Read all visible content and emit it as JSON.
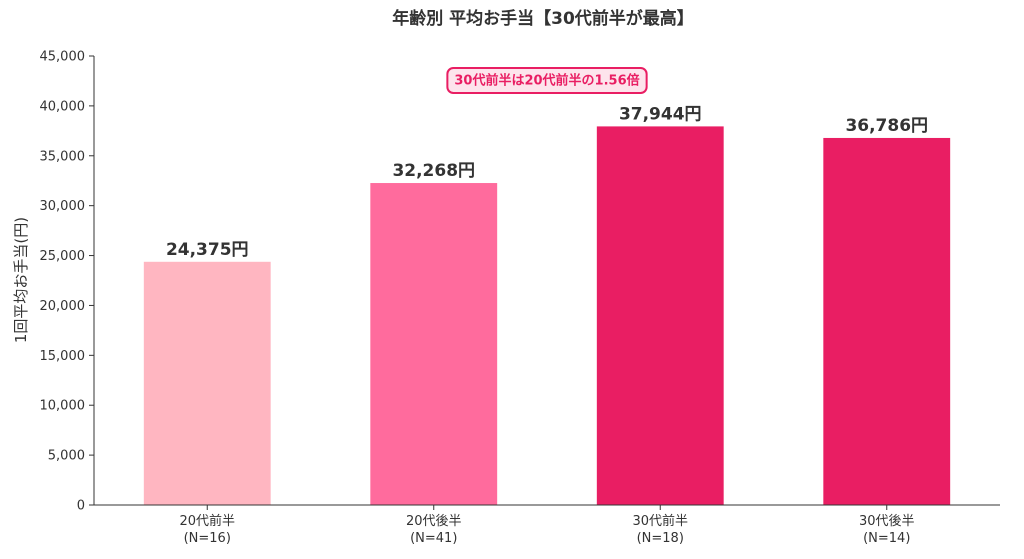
{
  "chart_data": {
    "type": "bar",
    "title": "年齢別 平均お手当【30代前半が最高】",
    "ylabel": "1回平均お手当(円)",
    "xlabel": "",
    "categories": [
      "20代前半\n(N=16)",
      "20代後半\n(N=41)",
      "30代前半\n(N=18)",
      "30代後半\n(N=14)"
    ],
    "values": [
      24375,
      32268,
      37944,
      36786
    ],
    "data_labels": [
      "24,375円",
      "32,268円",
      "37,944円",
      "36,786円"
    ],
    "bar_colors": [
      "#ffb6c1",
      "#ff6b9d",
      "#e91e63",
      "#e91e63"
    ],
    "ylim": [
      0,
      45000
    ],
    "yticks": [
      0,
      5000,
      10000,
      15000,
      20000,
      25000,
      30000,
      35000,
      40000,
      45000
    ],
    "ytick_labels": [
      "0",
      "5,000",
      "10,000",
      "15,000",
      "20,000",
      "25,000",
      "30,000",
      "35,000",
      "40,000",
      "45,000"
    ],
    "grid": false,
    "annotation": {
      "text": "30代前半は20代前半の1.56倍",
      "color": "#e91e63",
      "background": "#fde4ec"
    }
  }
}
